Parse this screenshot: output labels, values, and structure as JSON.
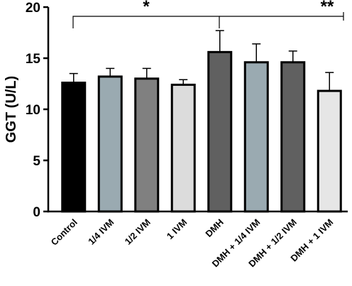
{
  "chart_data": {
    "type": "bar",
    "y_label": "GGT (U/L)",
    "categories": [
      "Control",
      "1/4 IVM",
      "1/2 IVM",
      "1 IVM",
      "DMH",
      "DMH + 1/4 IVM",
      "DMH + 1/2 IVM",
      "DMH + 1 IVM"
    ],
    "values": [
      12.6,
      13.2,
      13.0,
      12.4,
      15.6,
      14.6,
      14.6,
      11.8
    ],
    "errors": [
      0.9,
      0.8,
      1.0,
      0.5,
      2.1,
      1.8,
      1.1,
      1.8
    ],
    "colors": [
      "#000000",
      "#9aaab1",
      "#808080",
      "#dcdcdc",
      "#606060",
      "#9aaab1",
      "#606060",
      "#e6e6e6"
    ],
    "ylim": [
      0,
      20
    ],
    "yticks": [
      0,
      5,
      10,
      15,
      20
    ],
    "annotations": [
      "*",
      "**"
    ]
  }
}
